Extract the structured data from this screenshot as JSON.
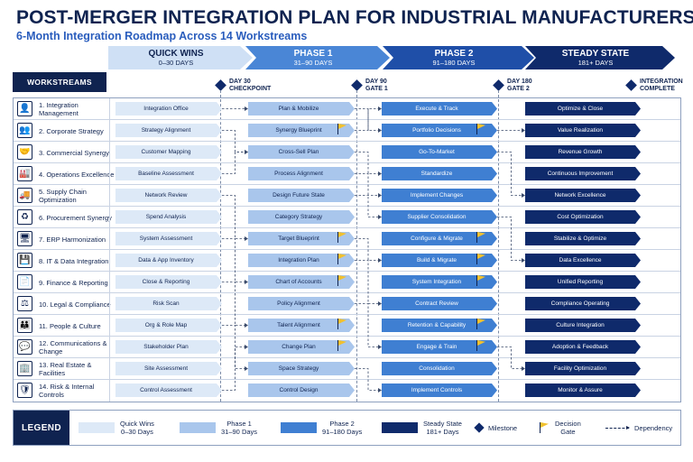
{
  "title": "POST-MERGER INTEGRATION PLAN FOR INDUSTRIAL MANUFACTURERS",
  "subtitle": "6-Month Integration Roadmap Across 14 Workstreams",
  "workstreams_header": "WORKSTREAMS",
  "phases": [
    {
      "name": "QUICK WINS",
      "days": "0–30 DAYS"
    },
    {
      "name": "PHASE 1",
      "days": "31–90 DAYS"
    },
    {
      "name": "PHASE 2",
      "days": "91–180 DAYS"
    },
    {
      "name": "STEADY STATE",
      "days": "181+ DAYS"
    }
  ],
  "milestones": [
    {
      "line1": "DAY 30",
      "line2": "CHECKPOINT"
    },
    {
      "line1": "DAY 90",
      "line2": "GATE 1"
    },
    {
      "line1": "DAY 180",
      "line2": "GATE 2"
    },
    {
      "line1": "INTEGRATION",
      "line2": "COMPLETE"
    }
  ],
  "workstreams": [
    {
      "label": "1. Integration Management",
      "icon": "person-icon",
      "glyph": "👤",
      "tasks": [
        "Integration Office",
        "Plan & Mobilize",
        "Execute & Track",
        "Optimize & Close"
      ],
      "gate1": false,
      "gate2": false
    },
    {
      "label": "2. Corporate Strategy",
      "icon": "people-icon",
      "glyph": "👥",
      "tasks": [
        "Strategy Alignment",
        "Synergy Blueprint",
        "Portfolio Decisions",
        "Value Realization"
      ],
      "gate1": true,
      "gate2": true
    },
    {
      "label": "3. Commercial Synergy",
      "icon": "handshake-icon",
      "glyph": "🤝",
      "tasks": [
        "Customer Mapping",
        "Cross-Sell Plan",
        "Go-To-Market",
        "Revenue Growth"
      ],
      "gate1": false,
      "gate2": false
    },
    {
      "label": "4. Operations Excellence",
      "icon": "factory-icon",
      "glyph": "🏭",
      "tasks": [
        "Baseline Assessment",
        "Process Alignment",
        "Standardize",
        "Continuous Improvement"
      ],
      "gate1": false,
      "gate2": false
    },
    {
      "label": "5. Supply Chain Optimization",
      "icon": "truck-icon",
      "glyph": "🚚",
      "tasks": [
        "Network Review",
        "Design Future State",
        "Implement Changes",
        "Network Excellence"
      ],
      "gate1": false,
      "gate2": false
    },
    {
      "label": "6. Procurement Synergy",
      "icon": "cycle-icon",
      "glyph": "♻",
      "tasks": [
        "Spend Analysis",
        "Category Strategy",
        "Supplier Consolidation",
        "Cost Optimization"
      ],
      "gate1": false,
      "gate2": false
    },
    {
      "label": "7. ERP Harmonization",
      "icon": "monitor-icon",
      "glyph": "🖥",
      "tasks": [
        "System Assessment",
        "Target Blueprint",
        "Configure & Migrate",
        "Stabilize & Optimize"
      ],
      "gate1": true,
      "gate2": true
    },
    {
      "label": "8. IT & Data Integration",
      "icon": "data-icon",
      "glyph": "💾",
      "tasks": [
        "Data & App Inventory",
        "Integration Plan",
        "Build & Migrate",
        "Data Excellence"
      ],
      "gate1": true,
      "gate2": true
    },
    {
      "label": "9. Finance & Reporting",
      "icon": "report-icon",
      "glyph": "📄",
      "tasks": [
        "Close & Reporting",
        "Chart of Accounts",
        "System Integration",
        "Unified Reporting"
      ],
      "gate1": true,
      "gate2": true
    },
    {
      "label": "10. Legal & Compliance",
      "icon": "scales-icon",
      "glyph": "⚖",
      "tasks": [
        "Risk Scan",
        "Policy Alignment",
        "Contract Review",
        "Compliance Operating"
      ],
      "gate1": false,
      "gate2": false
    },
    {
      "label": "11. People & Culture",
      "icon": "team-icon",
      "glyph": "👪",
      "tasks": [
        "Org & Role Map",
        "Talent Alignment",
        "Retention & Capability",
        "Culture Integration"
      ],
      "gate1": true,
      "gate2": true
    },
    {
      "label": "12. Communications & Change",
      "icon": "chat-icon",
      "glyph": "💬",
      "tasks": [
        "Stakeholder Plan",
        "Change Plan",
        "Engage & Train",
        "Adoption & Feedback"
      ],
      "gate1": true,
      "gate2": true
    },
    {
      "label": "13. Real Estate & Facilities",
      "icon": "building-icon",
      "glyph": "🏢",
      "tasks": [
        "Site Assessment",
        "Space Strategy",
        "Consolidation",
        "Facility Optimization"
      ],
      "gate1": false,
      "gate2": false
    },
    {
      "label": "14. Risk & Internal Controls",
      "icon": "shield-icon",
      "glyph": "🛡",
      "tasks": [
        "Control Assessment",
        "Control Design",
        "Implement Controls",
        "Monitor & Assure"
      ],
      "gate1": false,
      "gate2": false
    }
  ],
  "legend": {
    "title": "LEGEND",
    "quick_wins": {
      "line1": "Quick Wins",
      "line2": "0–30 Days",
      "color": "#dde9f7"
    },
    "phase1": {
      "line1": "Phase 1",
      "line2": "31–90 Days",
      "color": "#a9c6ec"
    },
    "phase2": {
      "line1": "Phase 2",
      "line2": "91–180 Days",
      "color": "#3f7fd2"
    },
    "steady": {
      "line1": "Steady State",
      "line2": "181+ Days",
      "color": "#0f2a6b"
    },
    "milestone": "Milestone",
    "gate": {
      "line1": "Decision",
      "line2": "Gate"
    },
    "dependency": "Dependency"
  }
}
